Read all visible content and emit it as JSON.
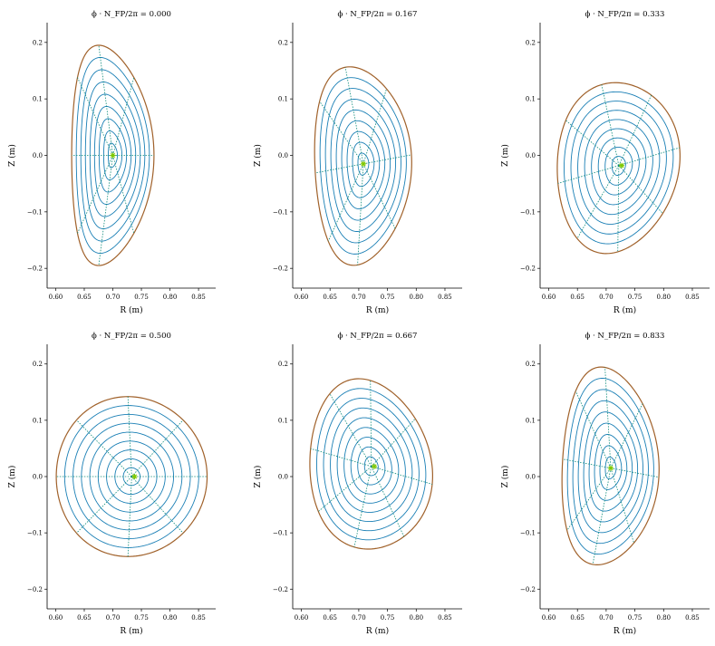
{
  "figure": {
    "background": "#ffffff",
    "colors": {
      "flux_surface": "#1a7fb5",
      "boundary": "#a0612a",
      "poloidal_lines": "#0a8a7a",
      "magnetic_axis": "#7ec800"
    }
  },
  "chart_data": [
    {
      "type": "line",
      "title": "ϕ · N_FP/2π = 0.000",
      "xlabel": "R (m)",
      "ylabel": "Z (m)",
      "xlim": [
        0.585,
        0.88
      ],
      "ylim": [
        -0.235,
        0.235
      ],
      "xticks": [
        "0.60",
        "0.65",
        "0.70",
        "0.75",
        "0.80",
        "0.85"
      ],
      "yticks": [
        "−0.2",
        "−0.1",
        "0.0",
        "0.1",
        "0.2"
      ],
      "grid": false,
      "series": [
        {
          "shape": {
            "R0": 0.7,
            "Z0": 0.0,
            "a": 0.072,
            "b": 0.195,
            "tilt": 0.0,
            "tri": 0.35
          },
          "n_surfaces": 9,
          "n_poloidal_lines": 8
        }
      ],
      "magnetic_axis": [
        0.7,
        0.0
      ]
    },
    {
      "type": "line",
      "title": "ϕ · N_FP/2π = 0.167",
      "xlabel": "R (m)",
      "ylabel": "Z (m)",
      "xlim": [
        0.585,
        0.88
      ],
      "ylim": [
        -0.235,
        0.235
      ],
      "xticks": [
        "0.60",
        "0.65",
        "0.70",
        "0.75",
        "0.80",
        "0.85"
      ],
      "yticks": [
        "−0.2",
        "−0.1",
        "0.0",
        "0.1",
        "0.2"
      ],
      "grid": false,
      "series": [
        {
          "shape": {
            "R0": 0.708,
            "Z0": -0.015,
            "a": 0.085,
            "b": 0.175,
            "tilt": 0.35,
            "tri": 0.25
          },
          "n_surfaces": 9,
          "n_poloidal_lines": 8
        }
      ],
      "magnetic_axis": [
        0.708,
        -0.015
      ]
    },
    {
      "type": "line",
      "title": "ϕ · N_FP/2π = 0.333",
      "xlabel": "R (m)",
      "ylabel": "Z (m)",
      "xlim": [
        0.585,
        0.88
      ],
      "ylim": [
        -0.235,
        0.235
      ],
      "xticks": [
        "0.60",
        "0.65",
        "0.70",
        "0.75",
        "0.80",
        "0.85"
      ],
      "yticks": [
        "−0.2",
        "−0.1",
        "0.0",
        "0.1",
        "0.2"
      ],
      "grid": false,
      "series": [
        {
          "shape": {
            "R0": 0.722,
            "Z0": -0.018,
            "a": 0.11,
            "b": 0.148,
            "tilt": 0.55,
            "tri": 0.15
          },
          "n_surfaces": 9,
          "n_poloidal_lines": 8
        }
      ],
      "magnetic_axis": [
        0.727,
        -0.018
      ]
    },
    {
      "type": "line",
      "title": "ϕ · N_FP/2π = 0.500",
      "xlabel": "R (m)",
      "ylabel": "Z (m)",
      "xlim": [
        0.585,
        0.88
      ],
      "ylim": [
        -0.235,
        0.235
      ],
      "xticks": [
        "0.60",
        "0.65",
        "0.70",
        "0.75",
        "0.80",
        "0.85"
      ],
      "yticks": [
        "−0.2",
        "−0.1",
        "0.0",
        "0.1",
        "0.2"
      ],
      "grid": false,
      "series": [
        {
          "shape": {
            "R0": 0.733,
            "Z0": 0.0,
            "a": 0.132,
            "b": 0.142,
            "tilt": 0.0,
            "tri": 0.05
          },
          "n_surfaces": 9,
          "n_poloidal_lines": 8
        }
      ],
      "magnetic_axis": [
        0.738,
        0.0
      ]
    },
    {
      "type": "line",
      "title": "ϕ · N_FP/2π = 0.667",
      "xlabel": "R (m)",
      "ylabel": "Z (m)",
      "xlim": [
        0.585,
        0.88
      ],
      "ylim": [
        -0.235,
        0.235
      ],
      "xticks": [
        "0.60",
        "0.65",
        "0.70",
        "0.75",
        "0.80",
        "0.85"
      ],
      "yticks": [
        "−0.2",
        "−0.1",
        "0.0",
        "0.1",
        "0.2"
      ],
      "grid": false,
      "series": [
        {
          "shape": {
            "R0": 0.722,
            "Z0": 0.018,
            "a": 0.11,
            "b": 0.148,
            "tilt": -0.55,
            "tri": 0.15
          },
          "n_surfaces": 9,
          "n_poloidal_lines": 8
        }
      ],
      "magnetic_axis": [
        0.727,
        0.018
      ]
    },
    {
      "type": "line",
      "title": "ϕ · N_FP/2π = 0.833",
      "xlabel": "R (m)",
      "ylabel": "Z (m)",
      "xlim": [
        0.585,
        0.88
      ],
      "ylim": [
        -0.235,
        0.235
      ],
      "xticks": [
        "0.60",
        "0.65",
        "0.70",
        "0.75",
        "0.80",
        "0.85"
      ],
      "yticks": [
        "−0.2",
        "−0.1",
        "0.0",
        "0.1",
        "0.2"
      ],
      "grid": false,
      "series": [
        {
          "shape": {
            "R0": 0.708,
            "Z0": 0.015,
            "a": 0.085,
            "b": 0.175,
            "tilt": -0.35,
            "tri": 0.25
          },
          "n_surfaces": 9,
          "n_poloidal_lines": 8
        }
      ],
      "magnetic_axis": [
        0.708,
        0.015
      ]
    }
  ]
}
